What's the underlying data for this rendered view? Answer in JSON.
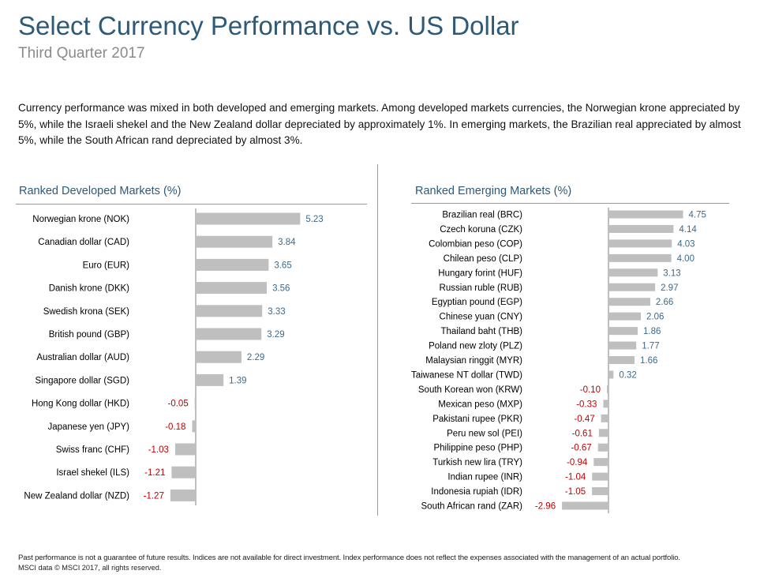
{
  "header": {
    "title": "Select Currency Performance vs. US Dollar",
    "subtitle": "Third Quarter 2017",
    "intro": "Currency performance was mixed in both developed and emerging markets. Among developed markets currencies, the Norwegian krone appreciated by 5%, while the Israeli shekel and the New Zealand dollar depreciated by approximately 1%. In emerging markets, the Brazilian real appreciated by almost 5%, while the South African rand depreciated by almost 3%."
  },
  "footer": {
    "disclaimer": "Past performance is not a guarantee of future results. Indices are not available for direct investment. Index performance does not reflect the expenses associated with the management of an actual portfolio.",
    "source": "MSCI data © MSCI 2017, all rights reserved."
  },
  "colors": {
    "bar": "#bfbfbf",
    "positive_label": "#3c6a8c",
    "negative_label": "#c00000",
    "title": "#2d5a78"
  },
  "chart_data": [
    {
      "type": "bar",
      "orientation": "horizontal",
      "title": "Ranked Developed Markets (%)",
      "categories": [
        "Norwegian krone (NOK)",
        "Canadian dollar (CAD)",
        "Euro (EUR)",
        "Danish krone (DKK)",
        "Swedish krona (SEK)",
        "British pound (GBP)",
        "Australian dollar (AUD)",
        "Singapore dollar (SGD)",
        "Hong Kong dollar (HKD)",
        "Japanese yen (JPY)",
        "Swiss franc (CHF)",
        "Israel shekel (ILS)",
        "New Zealand dollar (NZD)"
      ],
      "values": [
        5.23,
        3.84,
        3.65,
        3.56,
        3.33,
        3.29,
        2.29,
        1.39,
        -0.05,
        -0.18,
        -1.03,
        -1.21,
        -1.27
      ],
      "value_labels": [
        "5.23",
        "3.84",
        "3.65",
        "3.56",
        "3.33",
        "3.29",
        "2.29",
        "1.39",
        "-0.05",
        "-0.18",
        "-1.03",
        "-1.21",
        "-1.27"
      ],
      "xlabel": "",
      "ylabel": ""
    },
    {
      "type": "bar",
      "orientation": "horizontal",
      "title": "Ranked Emerging Markets (%)",
      "categories": [
        "Brazilian real (BRC)",
        "Czech koruna (CZK)",
        "Colombian peso (COP)",
        "Chilean peso (CLP)",
        "Hungary forint (HUF)",
        "Russian ruble (RUB)",
        "Egyptian pound (EGP)",
        "Chinese yuan (CNY)",
        "Thailand baht (THB)",
        "Poland new zloty (PLZ)",
        "Malaysian ringgit (MYR)",
        "Taiwanese NT dollar (TWD)",
        "South Korean won (KRW)",
        "Mexican peso (MXP)",
        "Pakistani rupee (PKR)",
        "Peru new sol (PEI)",
        "Philippine peso (PHP)",
        "Turkish new lira (TRY)",
        "Indian rupee (INR)",
        "Indonesia rupiah (IDR)",
        "South African rand (ZAR)"
      ],
      "values": [
        4.75,
        4.14,
        4.03,
        4.0,
        3.13,
        2.97,
        2.66,
        2.06,
        1.86,
        1.77,
        1.66,
        0.32,
        -0.1,
        -0.33,
        -0.47,
        -0.61,
        -0.67,
        -0.94,
        -1.04,
        -1.05,
        -2.96
      ],
      "value_labels": [
        "4.75",
        "4.14",
        "4.03",
        "4.00",
        "3.13",
        "2.97",
        "2.66",
        "2.06",
        "1.86",
        "1.77",
        "1.66",
        "0.32",
        "-0.10",
        "-0.33",
        "-0.47",
        "-0.61",
        "-0.67",
        "-0.94",
        "-1.04",
        "-1.05",
        "-2.96"
      ],
      "xlabel": "",
      "ylabel": ""
    }
  ]
}
